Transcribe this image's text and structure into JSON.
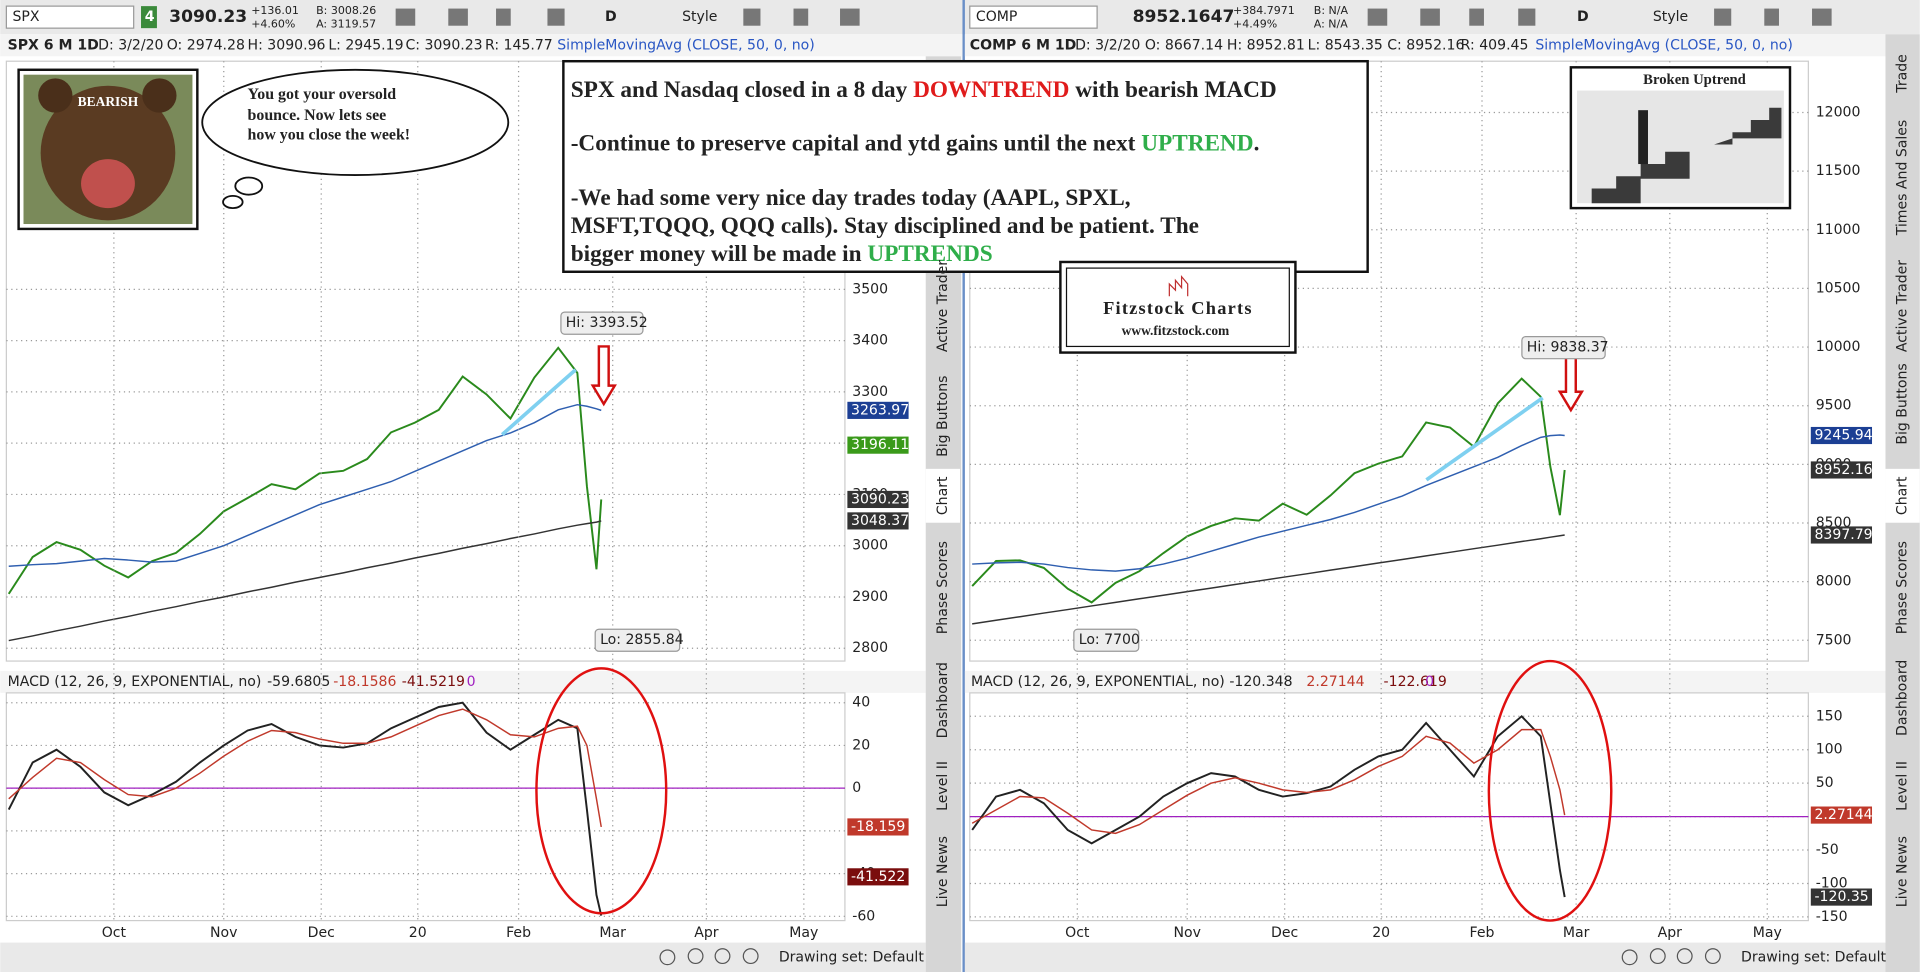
{
  "panels": [
    {
      "toolbar": {
        "symbol": "SPX",
        "link": "4",
        "last": "3090.23",
        "change": "+136.01",
        "change_pct": "+4.60%",
        "bid": "B: 3008.26",
        "ask": "A: 3119.57",
        "period": "D",
        "style": "Style"
      },
      "header": [
        "SPX 6 M 1D",
        "D: 3/2/20",
        "O: 2974.28",
        "H: 3090.96",
        "L: 2945.19",
        "C: 3090.23",
        "R: 145.77"
      ],
      "study": "SimpleMovingAvg (CLOSE, 50, 0, no)",
      "macd_header": [
        "MACD (12, 26, 9, EXPONENTIAL, no)",
        "-59.6805",
        "-18.1586",
        "-41.5219",
        "0"
      ],
      "hi": "Hi: 3393.52",
      "lo": "Lo: 2855.84",
      "drawing_set": "Drawing set: Default",
      "tabs": [
        "Active Trader",
        "Big Buttons",
        "Chart",
        "Phase Scores",
        "Dashboard",
        "Level II",
        "Live News"
      ]
    },
    {
      "toolbar": {
        "symbol": "COMP",
        "link": "",
        "last": "8952.1647",
        "change": "+384.7971",
        "change_pct": "+4.49%",
        "bid": "B: N/A",
        "ask": "A: N/A",
        "period": "D",
        "style": "Style"
      },
      "header": [
        "COMP 6 M 1D",
        "D: 3/2/20",
        "O: 8667.14",
        "H: 8952.81",
        "L: 8543.35",
        "C: 8952.16",
        "R: 409.45"
      ],
      "study": "SimpleMovingAvg (CLOSE, 50, 0, no)",
      "macd_header": [
        "MACD (12, 26, 9, EXPONENTIAL, no)",
        "-120.348",
        "2.27144",
        "-122.619",
        "0"
      ],
      "hi": "Hi: 9838.37",
      "lo": "Lo: 7700",
      "drawing_set": "Drawing set: Default",
      "tabs": [
        "Trade",
        "Times And Sales",
        "Active Trader",
        "Big Buttons",
        "Chart",
        "Phase Scores",
        "Dashboard",
        "Level II",
        "Live News"
      ]
    }
  ],
  "note": {
    "line1": [
      "SPX and Nasdaq closed in a 8 day ",
      "DOWNTREND",
      " with bearish MACD"
    ],
    "line2": [
      "-Continue to preserve capital and ytd gains until the next ",
      "UPTREND",
      "."
    ],
    "line3": "-We had some very nice day trades today (AAPL, SPXL,",
    "line4": "MSFT,TQQQ, QQQ calls).    Stay disciplined and be patient.  The",
    "line5": [
      "bigger money will be made in ",
      "UPTRENDS"
    ]
  },
  "cloud": [
    "You got your oversold",
    "bounce.   Now lets see",
    "how you close the week!"
  ],
  "bear_label": "BEARISH",
  "logo": {
    "name": "Fitzstock Charts",
    "url": "www.fitzstock.com"
  },
  "picture_caption": "Broken Uptrend",
  "chart_data": [
    {
      "type": "line",
      "x": [
        0,
        5,
        10,
        15,
        20,
        25,
        30,
        35,
        40,
        45,
        50,
        55,
        60,
        65,
        70,
        75,
        80,
        85,
        90,
        95,
        100,
        105,
        110,
        115,
        119,
        121,
        123,
        124
      ],
      "xlim": [
        -0.5,
        175
      ],
      "ylim": [
        2775,
        3945
      ],
      "yticks": [
        2800,
        2900,
        3000,
        3100,
        3200,
        3300,
        3400,
        3500
      ],
      "grid": true,
      "series": [
        {
          "color": "#2a8a1c",
          "values": [
            2906,
            2978,
            3007,
            2992,
            2961,
            2938,
            2970,
            2986,
            3023,
            3067,
            3093,
            3120,
            3110,
            3141,
            3146,
            3169,
            3221,
            3240,
            3265,
            3330,
            3295,
            3248,
            3328,
            3386,
            3337,
            3116,
            2954,
            3090.23
          ]
        },
        {
          "color": "#2f5fb0",
          "values": [
            2960,
            2963,
            2965,
            2970,
            2975,
            2972,
            2968,
            2970,
            2985,
            3000,
            3020,
            3040,
            3060,
            3080,
            3095,
            3110,
            3125,
            3145,
            3165,
            3185,
            3205,
            3220,
            3240,
            3265,
            3275,
            3272,
            3267,
            3263.97
          ]
        },
        {
          "color": "#333333",
          "values": [
            2815,
            2824,
            2834,
            2843,
            2853,
            2862,
            2872,
            2881,
            2891,
            2900,
            2910,
            2919,
            2929,
            2938,
            2947,
            2957,
            2966,
            2976,
            2985,
            2995,
            3004,
            3014,
            3023,
            3033,
            3040,
            3043,
            3046,
            3048.37
          ]
        }
      ],
      "markers": [
        {
          "value": 3263.97,
          "color": "#1c3f94"
        },
        {
          "value": 3196.11,
          "color": "#3a9a1a"
        },
        {
          "value": 3090.23,
          "color": "#333333"
        },
        {
          "value": 3048.37,
          "color": "#333333"
        }
      ]
    },
    {
      "type": "line",
      "x": [
        0,
        5,
        10,
        15,
        20,
        25,
        30,
        35,
        40,
        45,
        50,
        55,
        60,
        65,
        70,
        75,
        80,
        85,
        90,
        95,
        100,
        105,
        110,
        115,
        119,
        121,
        123,
        124
      ],
      "xlim": [
        -0.5,
        175
      ],
      "ylim": [
        -62,
        44.6
      ],
      "yticks": [
        40,
        20,
        0,
        -20,
        -40,
        -60
      ],
      "grid": true,
      "xticks": [
        {
          "value": 22,
          "label": "Oct"
        },
        {
          "value": 45,
          "label": "Nov"
        },
        {
          "value": 65.4,
          "label": "Dec"
        },
        {
          "value": 85.6,
          "label": "20"
        },
        {
          "value": 106.7,
          "label": "Feb"
        },
        {
          "value": 126.4,
          "label": "Mar"
        },
        {
          "value": 146,
          "label": "Apr"
        },
        {
          "value": 166.4,
          "label": "May"
        }
      ],
      "zero_color": "#a020c0",
      "series": [
        {
          "color": "#222222",
          "values": [
            -10,
            12,
            18,
            10,
            -2,
            -8,
            -3,
            3,
            12,
            20,
            27,
            30,
            24,
            20,
            19,
            21,
            28,
            33,
            38,
            40,
            26,
            18,
            25,
            32,
            28,
            -10,
            -50,
            -59.6805
          ]
        },
        {
          "color": "#c0392b",
          "values": [
            -5,
            5,
            14,
            12,
            4,
            -3,
            -4,
            0,
            7,
            15,
            22,
            27,
            26,
            23,
            21,
            21,
            24,
            29,
            34,
            37,
            32,
            25,
            24,
            28,
            29,
            20,
            -5,
            -18.1586
          ]
        }
      ],
      "markers": [
        {
          "value": -18.159,
          "color": "#c0392b"
        },
        {
          "value": -41.522,
          "color": "#7a0d0d"
        }
      ]
    },
    {
      "type": "line",
      "x": [
        0,
        5,
        10,
        15,
        20,
        25,
        30,
        35,
        40,
        45,
        50,
        55,
        60,
        65,
        70,
        75,
        80,
        85,
        90,
        95,
        100,
        105,
        110,
        115,
        119,
        121,
        123,
        124
      ],
      "xlim": [
        -0.5,
        175
      ],
      "ylim": [
        7323,
        12437
      ],
      "yticks": [
        7500,
        8000,
        8500,
        9000,
        9500,
        10000,
        10500,
        11000,
        11500,
        12000
      ],
      "grid": true,
      "series": [
        {
          "color": "#2a8a1c",
          "values": [
            7962,
            8176,
            8182,
            8117,
            7940,
            7823,
            7990,
            8089,
            8243,
            8386,
            8475,
            8540,
            8520,
            8665,
            8570,
            8735,
            8924,
            9006,
            9068,
            9357,
            9314,
            9150,
            9520,
            9731,
            9576,
            8980,
            8567,
            8952.16
          ]
        },
        {
          "color": "#2f5fb0",
          "values": [
            8150,
            8160,
            8165,
            8150,
            8120,
            8100,
            8090,
            8110,
            8150,
            8200,
            8260,
            8320,
            8380,
            8430,
            8480,
            8530,
            8590,
            8660,
            8730,
            8820,
            8900,
            8980,
            9060,
            9160,
            9230,
            9245,
            9250,
            9245.94
          ]
        },
        {
          "color": "#333333",
          "values": [
            7640,
            7671,
            7701,
            7732,
            7762,
            7793,
            7823,
            7854,
            7884,
            7915,
            7945,
            7976,
            8006,
            8037,
            8067,
            8098,
            8128,
            8159,
            8189,
            8220,
            8250,
            8281,
            8311,
            8342,
            8366,
            8379,
            8391,
            8397.79
          ]
        }
      ],
      "markers": [
        {
          "value": 9245.94,
          "color": "#1c3f94"
        },
        {
          "value": 8952.16,
          "color": "#333333"
        },
        {
          "value": 8397.79,
          "color": "#333333"
        }
      ]
    },
    {
      "type": "line",
      "x": [
        0,
        5,
        10,
        15,
        20,
        25,
        30,
        35,
        40,
        45,
        50,
        55,
        60,
        65,
        70,
        75,
        80,
        85,
        90,
        95,
        100,
        105,
        110,
        115,
        119,
        121,
        123,
        124
      ],
      "xlim": [
        -0.5,
        175
      ],
      "ylim": [
        -155.5,
        185
      ],
      "yticks": [
        150,
        100,
        50,
        0,
        -50,
        -100,
        -150
      ],
      "grid": true,
      "xticks": [
        {
          "value": 22,
          "label": "Oct"
        },
        {
          "value": 45,
          "label": "Nov"
        },
        {
          "value": 65.4,
          "label": "Dec"
        },
        {
          "value": 85.6,
          "label": "20"
        },
        {
          "value": 106.7,
          "label": "Feb"
        },
        {
          "value": 126.4,
          "label": "Mar"
        },
        {
          "value": 146,
          "label": "Apr"
        },
        {
          "value": 166.4,
          "label": "May"
        }
      ],
      "zero_color": "#a020c0",
      "series": [
        {
          "color": "#222222",
          "values": [
            -20,
            30,
            40,
            20,
            -20,
            -40,
            -20,
            0,
            30,
            50,
            65,
            60,
            40,
            30,
            35,
            45,
            70,
            90,
            100,
            140,
            100,
            60,
            120,
            150,
            120,
            20,
            -80,
            -120.348
          ]
        },
        {
          "color": "#c0392b",
          "values": [
            -10,
            10,
            30,
            28,
            5,
            -20,
            -25,
            -12,
            10,
            32,
            50,
            58,
            50,
            40,
            36,
            40,
            55,
            75,
            90,
            120,
            110,
            80,
            100,
            130,
            130,
            90,
            40,
            2.27144
          ]
        }
      ],
      "markers": [
        {
          "value": 2.27144,
          "color": "#c0392b"
        },
        {
          "value": -120.35,
          "color": "#333333"
        }
      ]
    }
  ]
}
